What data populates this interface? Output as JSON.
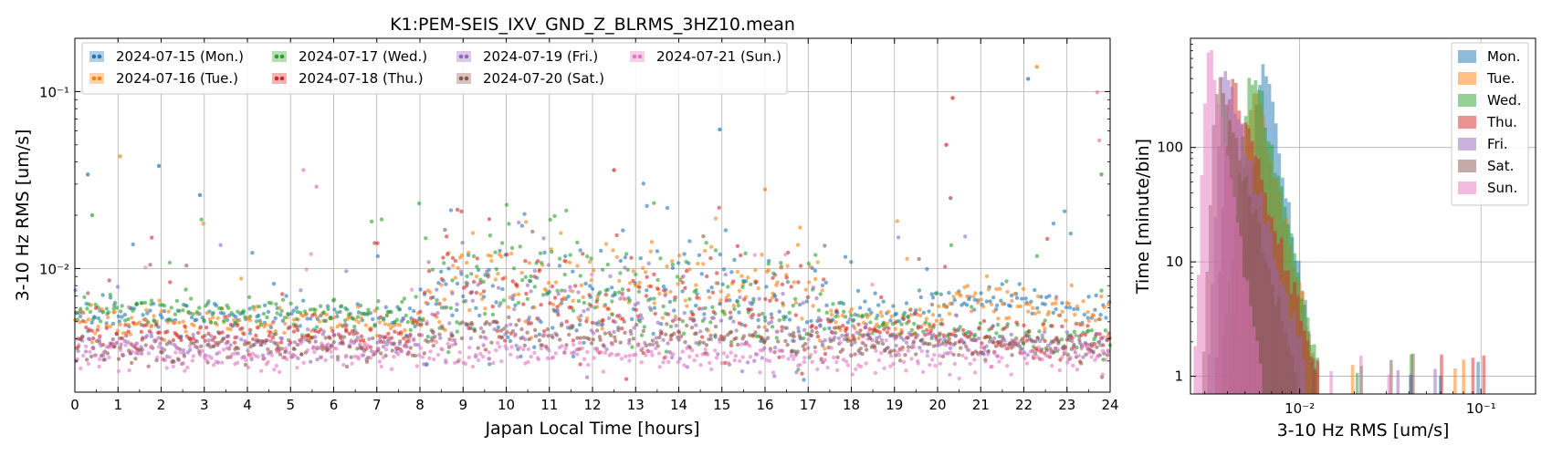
{
  "colors": {
    "mon": "#1f77b4",
    "tue": "#ff7f0e",
    "wed": "#2ca02c",
    "thu": "#d62728",
    "fri": "#9467bd",
    "sat": "#8c564b",
    "sun": "#e377c2",
    "grid": "#b0b0b0"
  },
  "chart_data": [
    {
      "type": "scatter",
      "title": "K1:PEM-SEIS_IXV_GND_Z_BLRMS_3HZ10.mean",
      "xlabel": "Japan Local Time [hours]",
      "ylabel": "3-10 Hz RMS [um/s]",
      "xlim": [
        0,
        24
      ],
      "ylim": [
        0.002,
        0.2
      ],
      "y_scale": "log",
      "grid": true,
      "legend_position": "top-left",
      "x_ticks": [
        0,
        1,
        2,
        3,
        4,
        5,
        6,
        7,
        8,
        9,
        10,
        11,
        12,
        13,
        14,
        15,
        16,
        17,
        18,
        19,
        20,
        21,
        22,
        23,
        24
      ],
      "x_tick_labels": [
        "0",
        "1",
        "2",
        "3",
        "4",
        "5",
        "6",
        "7",
        "8",
        "9",
        "10",
        "11",
        "12",
        "13",
        "14",
        "15",
        "16",
        "17",
        "18",
        "19",
        "20",
        "21",
        "22",
        "23",
        "24"
      ],
      "y_ticks": [
        0.01,
        0.1
      ],
      "y_tick_labels": [
        "10⁻²",
        "10⁻¹"
      ],
      "series": [
        {
          "name": "2024-07-15 (Mon.)",
          "color_key": "mon",
          "profile_hours": [
            0,
            7.8,
            8,
            8.5,
            9,
            10,
            12,
            13,
            14,
            15,
            16,
            17,
            17.5,
            18,
            19,
            20,
            21,
            22,
            23,
            24
          ],
          "profile_values": [
            0.0056,
            0.0052,
            0.0058,
            0.0065,
            0.0072,
            0.0075,
            0.007,
            0.0078,
            0.0072,
            0.0075,
            0.007,
            0.0062,
            0.0058,
            0.0056,
            0.0057,
            0.0063,
            0.0068,
            0.0062,
            0.0058,
            0.0057
          ]
        },
        {
          "name": "2024-07-16 (Tue.)",
          "color_key": "tue",
          "profile_hours": [
            0,
            7.8,
            8,
            8.5,
            9,
            10,
            12,
            13,
            14,
            15,
            16,
            17,
            17.5,
            18,
            19,
            20,
            20.5,
            21,
            21.5,
            22,
            23,
            24
          ],
          "profile_values": [
            0.0052,
            0.0049,
            0.0055,
            0.007,
            0.0085,
            0.0078,
            0.0075,
            0.0085,
            0.0078,
            0.0072,
            0.0085,
            0.0065,
            0.0052,
            0.005,
            0.0051,
            0.0054,
            0.0068,
            0.0071,
            0.0066,
            0.006,
            0.0058,
            0.0057
          ]
        },
        {
          "name": "2024-07-17 (Wed.)",
          "color_key": "wed",
          "profile_hours": [
            0,
            7.8,
            8,
            9,
            10,
            11,
            12,
            13,
            14,
            15,
            16,
            17,
            18,
            19,
            20,
            21,
            22,
            23,
            24
          ],
          "profile_values": [
            0.006,
            0.0055,
            0.006,
            0.0085,
            0.008,
            0.0088,
            0.007,
            0.0068,
            0.0072,
            0.0065,
            0.0068,
            0.0058,
            0.0049,
            0.0046,
            0.0045,
            0.0043,
            0.0041,
            0.004,
            0.0041
          ]
        },
        {
          "name": "2024-07-18 (Thu.)",
          "color_key": "thu",
          "profile_hours": [
            0,
            7.8,
            8,
            8.5,
            9,
            10,
            11,
            12,
            13,
            14,
            15,
            16,
            17,
            18,
            19,
            20,
            21,
            22,
            23,
            24
          ],
          "profile_values": [
            0.0042,
            0.0041,
            0.0048,
            0.007,
            0.0085,
            0.0062,
            0.006,
            0.0055,
            0.0058,
            0.0062,
            0.0065,
            0.0068,
            0.005,
            0.0044,
            0.0043,
            0.0042,
            0.0041,
            0.004,
            0.0039,
            0.0039
          ]
        },
        {
          "name": "2024-07-19 (Fri.)",
          "color_key": "fri",
          "profile_hours": [
            0,
            7.8,
            8,
            9,
            10,
            11,
            12,
            13,
            14,
            15,
            16,
            17,
            18,
            20,
            22,
            24
          ],
          "profile_values": [
            0.0037,
            0.0037,
            0.0042,
            0.005,
            0.0052,
            0.0055,
            0.0048,
            0.0045,
            0.0046,
            0.0045,
            0.0043,
            0.0041,
            0.004,
            0.0039,
            0.0038,
            0.0037
          ]
        },
        {
          "name": "2024-07-20 (Sat.)",
          "color_key": "sat",
          "profile_hours": [
            0,
            7.8,
            8,
            9,
            10,
            12,
            14,
            16,
            18,
            20,
            22,
            24
          ],
          "profile_values": [
            0.0035,
            0.0035,
            0.0039,
            0.0044,
            0.0045,
            0.0043,
            0.0042,
            0.0041,
            0.0037,
            0.0036,
            0.0036,
            0.0035
          ]
        },
        {
          "name": "2024-07-21 (Sun.)",
          "color_key": "sun",
          "profile_hours": [
            0,
            6,
            8,
            10,
            12,
            14,
            16,
            18,
            20,
            22,
            24
          ],
          "profile_values": [
            0.0032,
            0.0032,
            0.0033,
            0.0034,
            0.0033,
            0.0032,
            0.0033,
            0.0032,
            0.0032,
            0.0032,
            0.0032
          ]
        }
      ],
      "outliers": [
        {
          "day": "mon",
          "x": 0.3,
          "y": 0.034
        },
        {
          "day": "mon",
          "x": 1.95,
          "y": 0.038
        },
        {
          "day": "mon",
          "x": 2.9,
          "y": 0.026
        },
        {
          "day": "mon",
          "x": 14.95,
          "y": 0.061
        },
        {
          "day": "mon",
          "x": 22.1,
          "y": 0.118
        },
        {
          "day": "tue",
          "x": 1.05,
          "y": 0.043
        },
        {
          "day": "tue",
          "x": 22.3,
          "y": 0.138
        },
        {
          "day": "tue",
          "x": 16.0,
          "y": 0.028
        },
        {
          "day": "wed",
          "x": 0.4,
          "y": 0.02
        },
        {
          "day": "wed",
          "x": 23.8,
          "y": 0.034
        },
        {
          "day": "thu",
          "x": 20.2,
          "y": 0.05
        },
        {
          "day": "thu",
          "x": 20.35,
          "y": 0.092
        },
        {
          "day": "thu",
          "x": 12.5,
          "y": 0.036
        },
        {
          "day": "sat",
          "x": 20.3,
          "y": 0.025
        },
        {
          "day": "sun",
          "x": 5.3,
          "y": 0.036
        },
        {
          "day": "sun",
          "x": 5.6,
          "y": 0.029
        },
        {
          "day": "sun",
          "x": 23.7,
          "y": 0.099
        },
        {
          "day": "sun",
          "x": 23.75,
          "y": 0.053
        }
      ]
    },
    {
      "type": "bar",
      "subtype": "histogram",
      "xlabel": "3-10 Hz RMS [um/s]",
      "ylabel": "Time [minute/bin]",
      "x_scale": "log",
      "y_scale": "log",
      "xlim": [
        0.0025,
        0.2
      ],
      "ylim": [
        0.7,
        900
      ],
      "grid": true,
      "legend_position": "top-right",
      "x_ticks": [
        0.01,
        0.1
      ],
      "x_tick_labels": [
        "10⁻²",
        "10⁻¹"
      ],
      "y_ticks": [
        1,
        10,
        100
      ],
      "y_tick_labels": [
        "1",
        "10",
        "100"
      ],
      "series": [
        {
          "name": "Mon.",
          "color_key": "mon",
          "peak_x": 0.0065,
          "peak_count": 430,
          "min_x": 0.0046,
          "max_x": 0.012
        },
        {
          "name": "Tue.",
          "color_key": "tue",
          "peak_x": 0.0058,
          "peak_count": 270,
          "min_x": 0.0041,
          "max_x": 0.0125
        },
        {
          "name": "Wed.",
          "color_key": "wed",
          "peak_x": 0.0059,
          "peak_count": 330,
          "min_x": 0.0037,
          "max_x": 0.0125
        },
        {
          "name": "Thu.",
          "color_key": "thu",
          "peak_x": 0.0043,
          "peak_count": 330,
          "min_x": 0.0034,
          "max_x": 0.0125
        },
        {
          "name": "Fri.",
          "color_key": "fri",
          "peak_x": 0.0039,
          "peak_count": 380,
          "min_x": 0.0031,
          "max_x": 0.011
        },
        {
          "name": "Sat.",
          "color_key": "sat",
          "peak_x": 0.0036,
          "peak_count": 330,
          "min_x": 0.0029,
          "max_x": 0.0095
        },
        {
          "name": "Sun.",
          "color_key": "sun",
          "peak_x": 0.0032,
          "peak_count": 560,
          "min_x": 0.0026,
          "max_x": 0.006
        }
      ]
    }
  ]
}
